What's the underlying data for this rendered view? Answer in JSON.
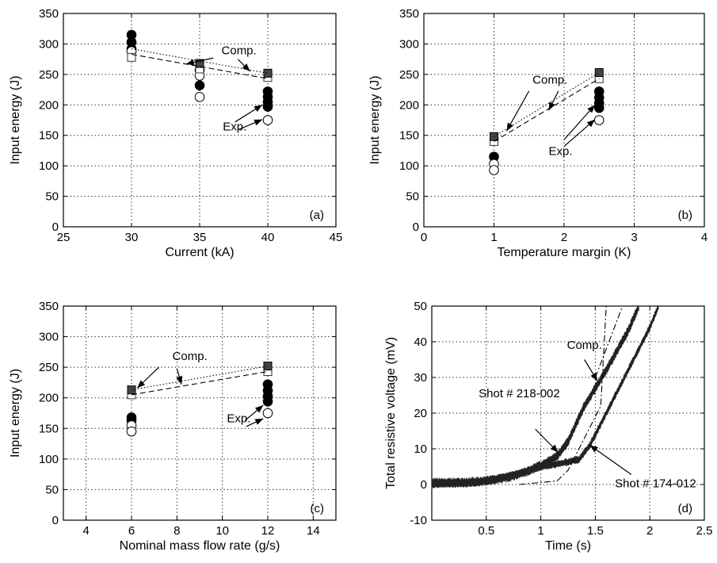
{
  "chart_data": [
    {
      "type": "scatter",
      "panel_label": "(a)",
      "xlabel": "Current (kA)",
      "ylabel": "Input energy (J)",
      "xlim": [
        25,
        45
      ],
      "ylim": [
        0,
        350
      ],
      "xticks": [
        25,
        30,
        35,
        40,
        45
      ],
      "yticks": [
        0,
        50,
        100,
        150,
        200,
        250,
        300,
        350
      ],
      "grid": true,
      "series": [
        {
          "marker": "filled-circle",
          "points": [
            [
              30,
              315
            ],
            [
              30,
              303
            ],
            [
              30,
              292
            ],
            [
              35,
              257
            ],
            [
              35,
              232
            ],
            [
              40,
              222
            ],
            [
              40,
              213
            ],
            [
              40,
              205
            ],
            [
              40,
              197
            ]
          ]
        },
        {
          "marker": "open-circle",
          "points": [
            [
              30,
              288
            ],
            [
              35,
              248
            ],
            [
              35,
              213
            ],
            [
              40,
              175
            ]
          ]
        },
        {
          "marker": "open-square",
          "points": [
            [
              30,
              278
            ],
            [
              35,
              259
            ],
            [
              40,
              245
            ]
          ]
        },
        {
          "marker": "filled-square",
          "points": [
            [
              35,
              268
            ],
            [
              40,
              252
            ]
          ]
        },
        {
          "style": "dotted",
          "points": [
            [
              30,
              292
            ],
            [
              40,
              252
            ]
          ]
        },
        {
          "style": "dashed",
          "points": [
            [
              30,
              283
            ],
            [
              40,
              243
            ]
          ]
        }
      ],
      "annotations": [
        {
          "text": "Comp.",
          "at": [
            36.6,
            283
          ]
        },
        {
          "text": "Exp.",
          "at": [
            36.7,
            158
          ]
        }
      ]
    },
    {
      "type": "scatter",
      "panel_label": "(b)",
      "xlabel": "Temperature margin (K)",
      "ylabel": "Input energy (J)",
      "xlim": [
        0,
        4
      ],
      "ylim": [
        0,
        350
      ],
      "xticks": [
        0,
        1,
        2,
        3,
        4
      ],
      "yticks": [
        0,
        50,
        100,
        150,
        200,
        250,
        300,
        350
      ],
      "grid": true,
      "series": [
        {
          "marker": "filled-circle",
          "points": [
            [
              1,
              115
            ],
            [
              2.5,
              222
            ],
            [
              2.5,
              212
            ],
            [
              2.5,
              203
            ],
            [
              2.5,
              195
            ]
          ]
        },
        {
          "marker": "open-circle",
          "points": [
            [
              1,
              103
            ],
            [
              1,
              93
            ],
            [
              2.5,
              175
            ]
          ]
        },
        {
          "marker": "open-square",
          "points": [
            [
              1,
              140
            ],
            [
              2.5,
              243
            ]
          ]
        },
        {
          "marker": "filled-square",
          "points": [
            [
              1,
              148
            ],
            [
              2.5,
              253
            ]
          ]
        },
        {
          "style": "dotted",
          "points": [
            [
              1,
              148
            ],
            [
              2.5,
              253
            ]
          ]
        },
        {
          "style": "dashed",
          "points": [
            [
              1,
              140
            ],
            [
              2.5,
              243
            ]
          ]
        }
      ],
      "annotations": [
        {
          "text": "Comp.",
          "at": [
            1.55,
            235
          ]
        },
        {
          "text": "Exp.",
          "at": [
            1.78,
            118
          ]
        }
      ]
    },
    {
      "type": "scatter",
      "panel_label": "(c)",
      "xlabel": "Nominal mass flow rate (g/s)",
      "ylabel": "Input energy (J)",
      "xlim": [
        3,
        15
      ],
      "ylim": [
        0,
        350
      ],
      "xticks": [
        4,
        6,
        8,
        10,
        12,
        14
      ],
      "yticks": [
        0,
        50,
        100,
        150,
        200,
        250,
        300,
        350
      ],
      "grid": true,
      "series": [
        {
          "marker": "filled-circle",
          "points": [
            [
              6,
              168
            ],
            [
              6,
              163
            ],
            [
              12,
              222
            ],
            [
              12,
              212
            ],
            [
              12,
              203
            ],
            [
              12,
              194
            ]
          ]
        },
        {
          "marker": "open-circle",
          "points": [
            [
              6,
              155
            ],
            [
              6,
              145
            ],
            [
              12,
              175
            ]
          ]
        },
        {
          "marker": "open-square",
          "points": [
            [
              6,
              205
            ],
            [
              12,
              243
            ]
          ]
        },
        {
          "marker": "filled-square",
          "points": [
            [
              6,
              213
            ],
            [
              12,
              252
            ]
          ]
        },
        {
          "style": "dotted",
          "points": [
            [
              6,
              213
            ],
            [
              12,
              252
            ]
          ]
        },
        {
          "style": "dashed",
          "points": [
            [
              6,
              205
            ],
            [
              12,
              243
            ]
          ]
        }
      ],
      "annotations": [
        {
          "text": "Comp.",
          "at": [
            7.8,
            262
          ]
        },
        {
          "text": "Exp.",
          "at": [
            10.2,
            160
          ]
        }
      ]
    },
    {
      "type": "line",
      "panel_label": "(d)",
      "xlabel": "Time (s)",
      "ylabel": "Total resistive voltage (mV)",
      "xlim": [
        0,
        2.5
      ],
      "ylim": [
        -10,
        50
      ],
      "xticks": [
        0.5,
        1,
        1.5,
        2,
        2.5
      ],
      "yticks": [
        -10,
        0,
        10,
        20,
        30,
        40,
        50
      ],
      "grid": true,
      "series": [
        {
          "name": "Shot # 218-002",
          "style": "noisy",
          "noise": 1.3,
          "points": [
            [
              0,
              0.5
            ],
            [
              0.3,
              0.5
            ],
            [
              0.5,
              1
            ],
            [
              0.7,
              2
            ],
            [
              0.9,
              4
            ],
            [
              1.05,
              6
            ],
            [
              1.15,
              8
            ],
            [
              1.25,
              12
            ],
            [
              1.4,
              22
            ],
            [
              1.6,
              32
            ],
            [
              1.8,
              43
            ],
            [
              1.9,
              50
            ]
          ]
        },
        {
          "name": "Shot # 174-012",
          "style": "noisy",
          "noise": 1.0,
          "points": [
            [
              0,
              0
            ],
            [
              0.4,
              0.5
            ],
            [
              0.8,
              3
            ],
            [
              1.0,
              5
            ],
            [
              1.2,
              6
            ],
            [
              1.35,
              7
            ],
            [
              1.45,
              11
            ],
            [
              1.6,
              20
            ],
            [
              1.8,
              32
            ],
            [
              2.0,
              44
            ],
            [
              2.08,
              50
            ]
          ]
        },
        {
          "style": "dash-dot",
          "points": [
            [
              0.8,
              0
            ],
            [
              1.15,
              1
            ],
            [
              1.25,
              4
            ],
            [
              1.55,
              22
            ],
            [
              1.6,
              50
            ]
          ]
        },
        {
          "style": "dash-dot",
          "points": [
            [
              1.5,
              30
            ],
            [
              1.6,
              38
            ],
            [
              1.75,
              50
            ]
          ]
        }
      ],
      "annotations": [
        {
          "text": "Comp.",
          "at": [
            1.24,
            38
          ]
        },
        {
          "text": "Shot # 218-002",
          "at": [
            0.43,
            24.5
          ]
        },
        {
          "text": "Shot # 174-012",
          "at": [
            1.68,
            -0.8
          ]
        }
      ]
    }
  ]
}
